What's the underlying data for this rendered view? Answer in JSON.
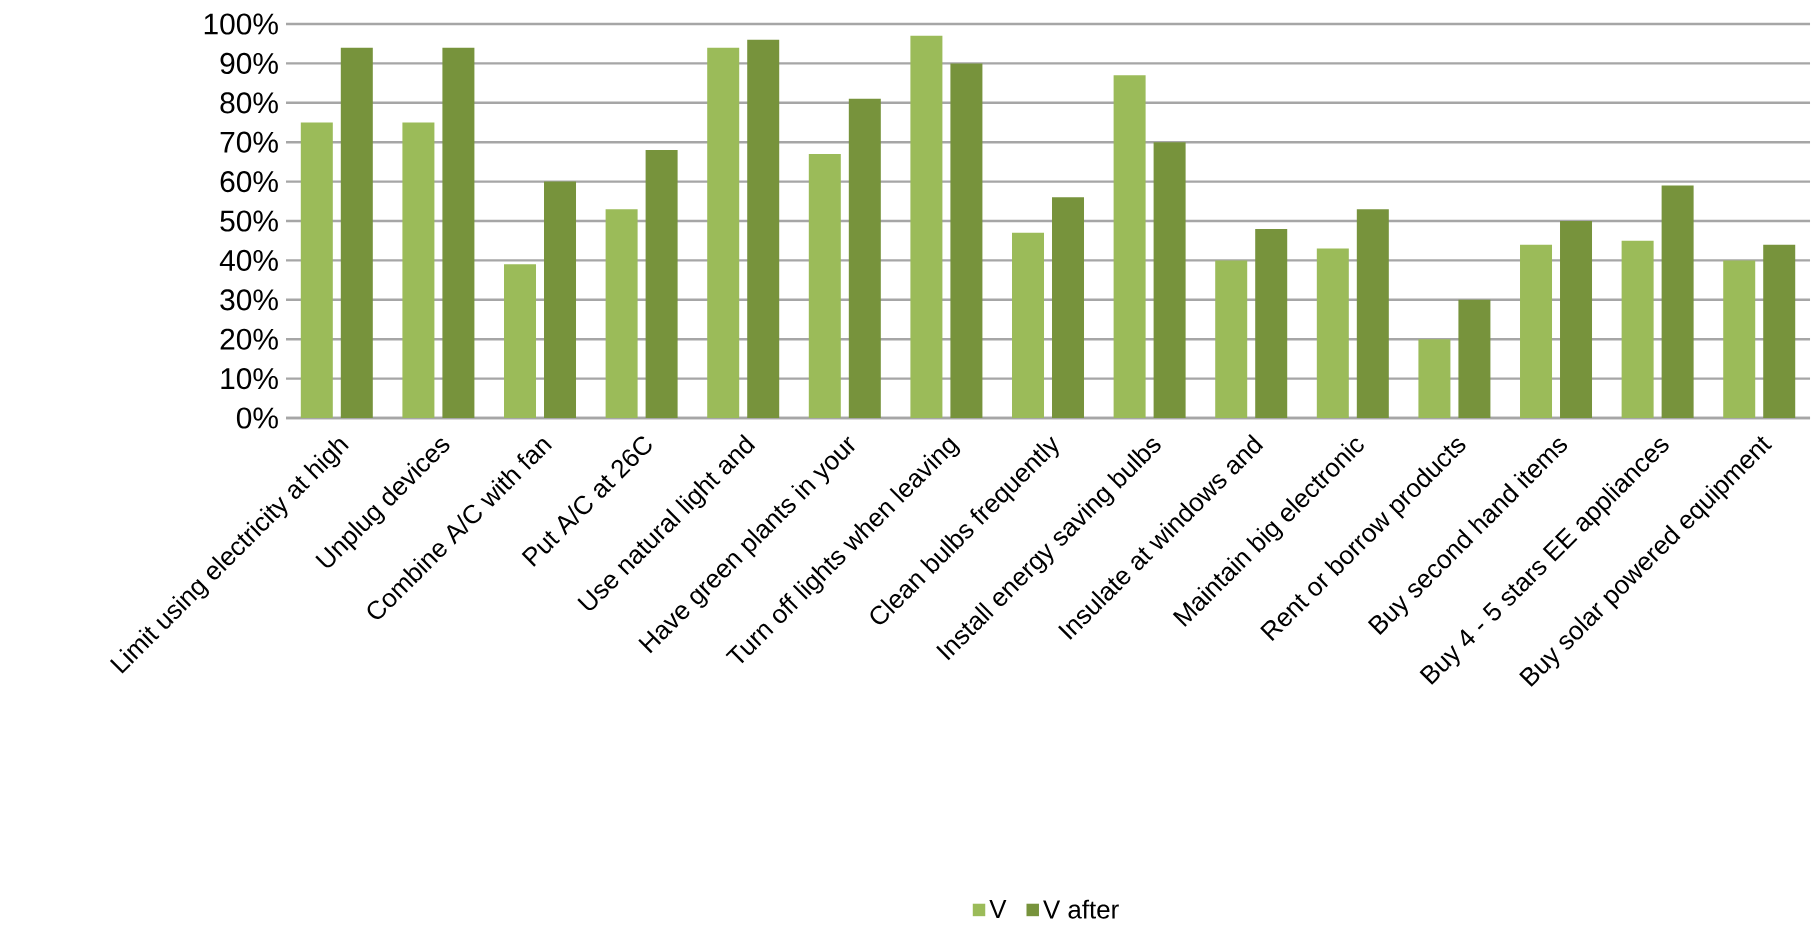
{
  "chart_data": {
    "type": "bar",
    "categories": [
      "Limit using electricity at high",
      "Unplug devices",
      "Combine A/C with fan",
      "Put A/C  at 26C",
      "Use natural light and",
      "Have green plants in your",
      "Turn off lights when leaving",
      "Clean bulbs frequently",
      "Install energy saving bulbs",
      "Insulate at windows and",
      "Maintain big electronic",
      "Rent or borrow products",
      "Buy second hand items",
      "Buy 4 - 5 stars EE appliances",
      "Buy solar powered equipment"
    ],
    "series": [
      {
        "name": "V",
        "color": "#9bbb59",
        "values": [
          75,
          75,
          39,
          53,
          94,
          67,
          97,
          47,
          87,
          40,
          43,
          20,
          44,
          45,
          40
        ]
      },
      {
        "name": "V after",
        "color": "#77933c",
        "values": [
          94,
          94,
          60,
          68,
          96,
          81,
          90,
          56,
          70,
          48,
          53,
          30,
          50,
          59,
          44
        ]
      }
    ],
    "ylim": [
      0,
      100
    ],
    "yticks": [
      {
        "value": 0,
        "label": "0%"
      },
      {
        "value": 10,
        "label": "10%"
      },
      {
        "value": 20,
        "label": "20%"
      },
      {
        "value": 30,
        "label": "30%"
      },
      {
        "value": 40,
        "label": "40%"
      },
      {
        "value": 50,
        "label": "50%"
      },
      {
        "value": 60,
        "label": "60%"
      },
      {
        "value": 70,
        "label": "70%"
      },
      {
        "value": 80,
        "label": "80%"
      },
      {
        "value": 90,
        "label": "90%"
      },
      {
        "value": 100,
        "label": "100%"
      }
    ],
    "grid": "y",
    "legend": "bottom"
  }
}
